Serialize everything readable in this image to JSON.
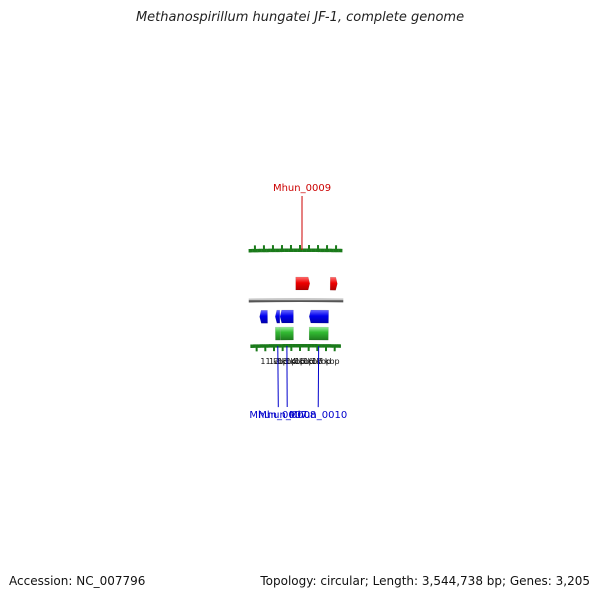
{
  "title": "Methanospirillum hungatei JF-1, complete genome",
  "footer": {
    "accession": "Accession: NC_007796",
    "topology": "Topology: circular; Length: 3,544,738 bp; Genes: 3,205"
  },
  "colors": {
    "backbone": "#808080",
    "tick": "#1a7a1a",
    "forward_cds": "#ee0000",
    "reverse_cds": "#0000ee",
    "gene": "#33bb33",
    "red_label": "#cc0000",
    "blue_label": "#0000cc"
  },
  "scale": {
    "unit": "kbp",
    "kbp_labels": [
      {
        "kbp": 11,
        "text": "11 kbp"
      },
      {
        "kbp": 12,
        "text": "12 kbp"
      },
      {
        "kbp": 13,
        "text": "13 kbp"
      },
      {
        "kbp": 14,
        "text": "14 kbp"
      },
      {
        "kbp": 15,
        "text": "15 kbp"
      },
      {
        "kbp": 16,
        "text": "16 kbp"
      },
      {
        "kbp": 17,
        "text": "17 kbp"
      }
    ]
  },
  "features": [
    {
      "strand": "-",
      "type": "CDS",
      "start_kbp": 9.4,
      "end_kbp": 10.3
    },
    {
      "strand": "-",
      "type": "CDS",
      "start_kbp": 11.18,
      "end_kbp": 11.7
    },
    {
      "strand": "-",
      "type": "CDS",
      "start_kbp": 11.73,
      "end_kbp": 13.25
    },
    {
      "strand": "-",
      "type": "gene",
      "start_kbp": 11.18,
      "end_kbp": 11.7
    },
    {
      "strand": "-",
      "type": "gene",
      "start_kbp": 11.73,
      "end_kbp": 13.25
    },
    {
      "strand": "+",
      "type": "CDS",
      "start_kbp": 13.52,
      "end_kbp": 15.1
    },
    {
      "strand": "-",
      "type": "CDS",
      "start_kbp": 15.05,
      "end_kbp": 17.25
    },
    {
      "strand": "-",
      "type": "gene",
      "start_kbp": 15.05,
      "end_kbp": 17.25
    },
    {
      "strand": "+",
      "type": "CDS",
      "start_kbp": 17.4,
      "end_kbp": 18.2
    }
  ],
  "labels": [
    {
      "text": "Mhun_0007",
      "position_kbp": 11.44,
      "strand": "-"
    },
    {
      "text": "Mhun_0008",
      "position_kbp": 12.49,
      "strand": "-"
    },
    {
      "text": "Mhun_0009",
      "position_kbp": 14.22,
      "strand": "+"
    },
    {
      "text": "Mhun_0010",
      "position_kbp": 16.15,
      "strand": "-"
    }
  ]
}
